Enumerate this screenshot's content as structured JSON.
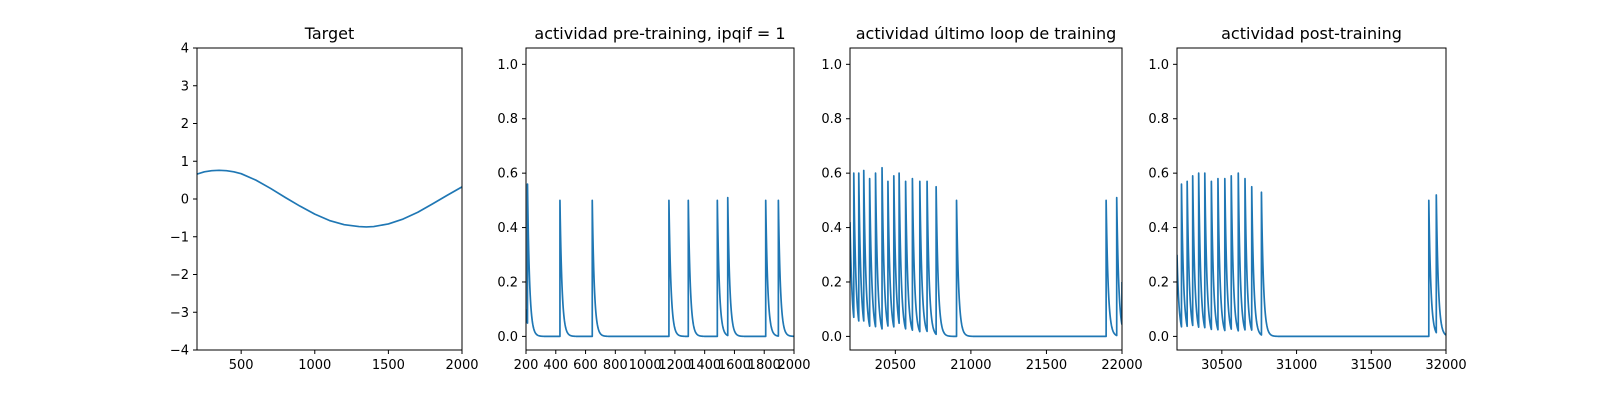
{
  "chart_data": [
    {
      "type": "line",
      "title": "Target",
      "xlim": [
        200,
        2000
      ],
      "ylim": [
        -4,
        4
      ],
      "xticks": [
        500,
        1000,
        1500,
        2000
      ],
      "yticks": [
        -4,
        -3,
        -2,
        -1,
        0,
        1,
        2,
        3,
        4
      ],
      "xtick_labels": [
        "500",
        "1000",
        "1500",
        "2000"
      ],
      "ytick_labels": [
        "−4",
        "−3",
        "−2",
        "−1",
        "0",
        "1",
        "2",
        "3",
        "4"
      ],
      "series": [
        {
          "kind": "curve",
          "x": [
            200,
            250,
            300,
            350,
            400,
            450,
            500,
            600,
            700,
            800,
            900,
            1000,
            1100,
            1200,
            1300,
            1350,
            1400,
            1500,
            1600,
            1700,
            1800,
            1900,
            2000
          ],
          "y": [
            0.66,
            0.72,
            0.75,
            0.76,
            0.75,
            0.72,
            0.67,
            0.5,
            0.28,
            0.04,
            -0.19,
            -0.4,
            -0.57,
            -0.68,
            -0.73,
            -0.74,
            -0.73,
            -0.66,
            -0.53,
            -0.35,
            -0.13,
            0.1,
            0.32
          ]
        }
      ]
    },
    {
      "type": "line",
      "title": "actividad pre-training, ipqif = 1",
      "xlim": [
        200,
        2000
      ],
      "ylim": [
        -0.05,
        1.06
      ],
      "xticks": [
        200,
        400,
        600,
        800,
        1000,
        1200,
        1400,
        1600,
        1800,
        2000
      ],
      "yticks": [
        0.0,
        0.2,
        0.4,
        0.6,
        0.8,
        1.0
      ],
      "xtick_labels": [
        "200",
        "400",
        "600",
        "800",
        "1000",
        "1200",
        "1400",
        "1600",
        "1800",
        "2000"
      ],
      "ytick_labels": [
        "0.0",
        "0.2",
        "0.4",
        "0.6",
        "0.8",
        "1.0"
      ],
      "series": [
        {
          "kind": "spikes",
          "start_value": 0.1,
          "spikes": [
            [
              210,
              0.56
            ],
            [
              428,
              0.5
            ],
            [
              645,
              0.5
            ],
            [
              1160,
              0.5
            ],
            [
              1290,
              0.5
            ],
            [
              1485,
              0.5
            ],
            [
              1555,
              0.51
            ],
            [
              1810,
              0.5
            ],
            [
              1895,
              0.5
            ]
          ]
        }
      ]
    },
    {
      "type": "line",
      "title": "actividad último loop de training",
      "xlim": [
        20200,
        22000
      ],
      "ylim": [
        -0.05,
        1.06
      ],
      "xticks": [
        20500,
        21000,
        21500,
        22000
      ],
      "yticks": [
        0.0,
        0.2,
        0.4,
        0.6,
        0.8,
        1.0
      ],
      "xtick_labels": [
        "20500",
        "21000",
        "21500",
        "22000"
      ],
      "ytick_labels": [
        "0.0",
        "0.2",
        "0.4",
        "0.6",
        "0.8",
        "1.0"
      ],
      "series": [
        {
          "kind": "spikes",
          "start_value": 0.42,
          "spikes": [
            [
              20225,
              0.6
            ],
            [
              20258,
              0.6
            ],
            [
              20291,
              0.61
            ],
            [
              20330,
              0.58
            ],
            [
              20369,
              0.6
            ],
            [
              20412,
              0.62
            ],
            [
              20451,
              0.57
            ],
            [
              20490,
              0.59
            ],
            [
              20525,
              0.6
            ],
            [
              20568,
              0.57
            ],
            [
              20613,
              0.58
            ],
            [
              20662,
              0.57
            ],
            [
              20710,
              0.57
            ],
            [
              20770,
              0.55
            ],
            [
              20905,
              0.5
            ],
            [
              21895,
              0.5
            ],
            [
              21965,
              0.51
            ]
          ],
          "end_value": 0.2
        }
      ]
    },
    {
      "type": "line",
      "title": "actividad post-training",
      "xlim": [
        30200,
        32000
      ],
      "ylim": [
        -0.05,
        1.06
      ],
      "xticks": [
        30500,
        31000,
        31500,
        32000
      ],
      "yticks": [
        0.0,
        0.2,
        0.4,
        0.6,
        0.8,
        1.0
      ],
      "xtick_labels": [
        "30500",
        "31000",
        "31500",
        "32000"
      ],
      "ytick_labels": [
        "0.0",
        "0.2",
        "0.4",
        "0.6",
        "0.8",
        "1.0"
      ],
      "series": [
        {
          "kind": "spikes",
          "start_value": 0.3,
          "spikes": [
            [
              30230,
              0.56
            ],
            [
              30268,
              0.57
            ],
            [
              30305,
              0.59
            ],
            [
              30345,
              0.6
            ],
            [
              30386,
              0.6
            ],
            [
              30430,
              0.57
            ],
            [
              30474,
              0.58
            ],
            [
              30520,
              0.58
            ],
            [
              30563,
              0.59
            ],
            [
              30610,
              0.6
            ],
            [
              30655,
              0.58
            ],
            [
              30700,
              0.55
            ],
            [
              30765,
              0.53
            ],
            [
              31885,
              0.5
            ],
            [
              31935,
              0.52
            ]
          ]
        }
      ]
    }
  ],
  "style": {
    "line_color": "#1f77b4",
    "axis_color": "#000000"
  }
}
